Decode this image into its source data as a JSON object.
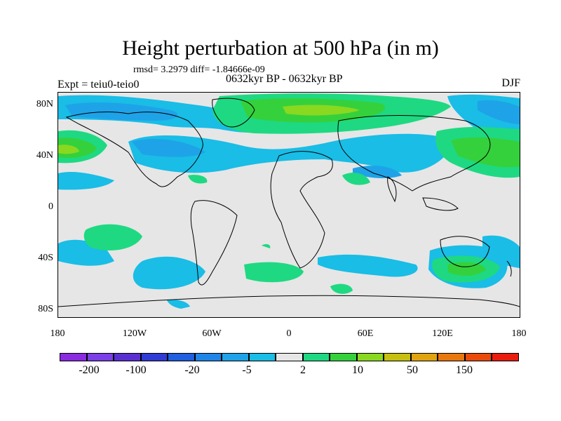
{
  "title": "Height perturbation at 500 hPa (in m)",
  "stats_line": "rmsd= 3.2979 diff= -1.84666e-09",
  "expt_label": "Expt = teiu0-teio0",
  "period_label": "0632kyr BP - 0632kyr BP",
  "season_label": "DJF",
  "lat_ticks": [
    "80N",
    "40N",
    "0",
    "40S",
    "80S"
  ],
  "lon_ticks": [
    "180",
    "120W",
    "60W",
    "0",
    "60E",
    "120E",
    "180"
  ],
  "colorbar": {
    "colors": [
      "#8a2be2",
      "#7a3fe6",
      "#5a2fd2",
      "#2f3bd4",
      "#1f5fe0",
      "#1f86e8",
      "#1ea3e8",
      "#19bde6",
      "#e6e6e6",
      "#1ed982",
      "#34d13c",
      "#8ad820",
      "#c6c010",
      "#e0a410",
      "#e8780e",
      "#ea4a0c",
      "#ea1c10"
    ],
    "labels": [
      "-200",
      "-100",
      "-20",
      "-5",
      "2",
      "10",
      "50",
      "150"
    ]
  },
  "map_data": {
    "description": "Filled contours of height perturbation; land outlines overlaid"
  }
}
